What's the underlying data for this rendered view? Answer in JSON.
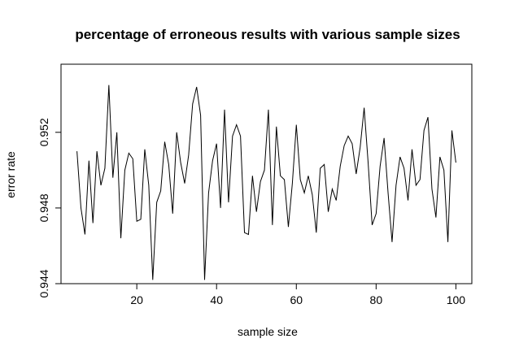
{
  "chart_data": {
    "type": "line",
    "title": "percentage of erroneous results with various sample sizes",
    "xlabel": "sample size",
    "ylabel": "error rate",
    "xlim": [
      1,
      104
    ],
    "ylim": [
      0.944,
      0.9556
    ],
    "x_ticks": [
      20,
      40,
      60,
      80,
      100
    ],
    "y_ticks": [
      0.944,
      0.948,
      0.952
    ],
    "grid": false,
    "series": [
      {
        "x": [
          5,
          6,
          7,
          8,
          9,
          10,
          11,
          12,
          13,
          14,
          15,
          16,
          17,
          18,
          19,
          20,
          21,
          22,
          23,
          24,
          25,
          26,
          27,
          28,
          29,
          30,
          31,
          32,
          33,
          34,
          35,
          36,
          37,
          38,
          39,
          40,
          41,
          42,
          43,
          44,
          45,
          46,
          47,
          48,
          49,
          50,
          51,
          52,
          53,
          54,
          55,
          56,
          57,
          58,
          59,
          60,
          61,
          62,
          63,
          64,
          65,
          66,
          67,
          68,
          69,
          70,
          71,
          72,
          73,
          74,
          75,
          76,
          77,
          78,
          79,
          80,
          81,
          82,
          83,
          84,
          85,
          86,
          87,
          88,
          89,
          90,
          91,
          92,
          93,
          94,
          95,
          96,
          97,
          98,
          99,
          100
        ],
        "y": [
          0.951,
          0.948,
          0.9466,
          0.9505,
          0.9472,
          0.951,
          0.9492,
          0.9501,
          0.9545,
          0.9496,
          0.952,
          0.9464,
          0.95,
          0.9509,
          0.9506,
          0.9473,
          0.9474,
          0.9511,
          0.9492,
          0.9442,
          0.9483,
          0.9489,
          0.9515,
          0.9503,
          0.9477,
          0.952,
          0.9504,
          0.9493,
          0.9508,
          0.9535,
          0.9544,
          0.9529,
          0.9442,
          0.9488,
          0.9505,
          0.9514,
          0.948,
          0.9532,
          0.9483,
          0.9518,
          0.9524,
          0.9518,
          0.9467,
          0.9466,
          0.9497,
          0.9478,
          0.9494,
          0.95,
          0.9532,
          0.9471,
          0.9523,
          0.9497,
          0.9495,
          0.947,
          0.9493,
          0.9524,
          0.9495,
          0.9488,
          0.9497,
          0.9487,
          0.9467,
          0.9501,
          0.9503,
          0.9478,
          0.949,
          0.9484,
          0.9502,
          0.9513,
          0.9518,
          0.9514,
          0.9498,
          0.9512,
          0.9533,
          0.9504,
          0.9471,
          0.9477,
          0.9502,
          0.9517,
          0.9488,
          0.9462,
          0.9492,
          0.9507,
          0.9501,
          0.9484,
          0.9511,
          0.9492,
          0.9495,
          0.9521,
          0.9528,
          0.949,
          0.9475,
          0.9507,
          0.95,
          0.9462,
          0.9521,
          0.9504
        ]
      }
    ]
  }
}
